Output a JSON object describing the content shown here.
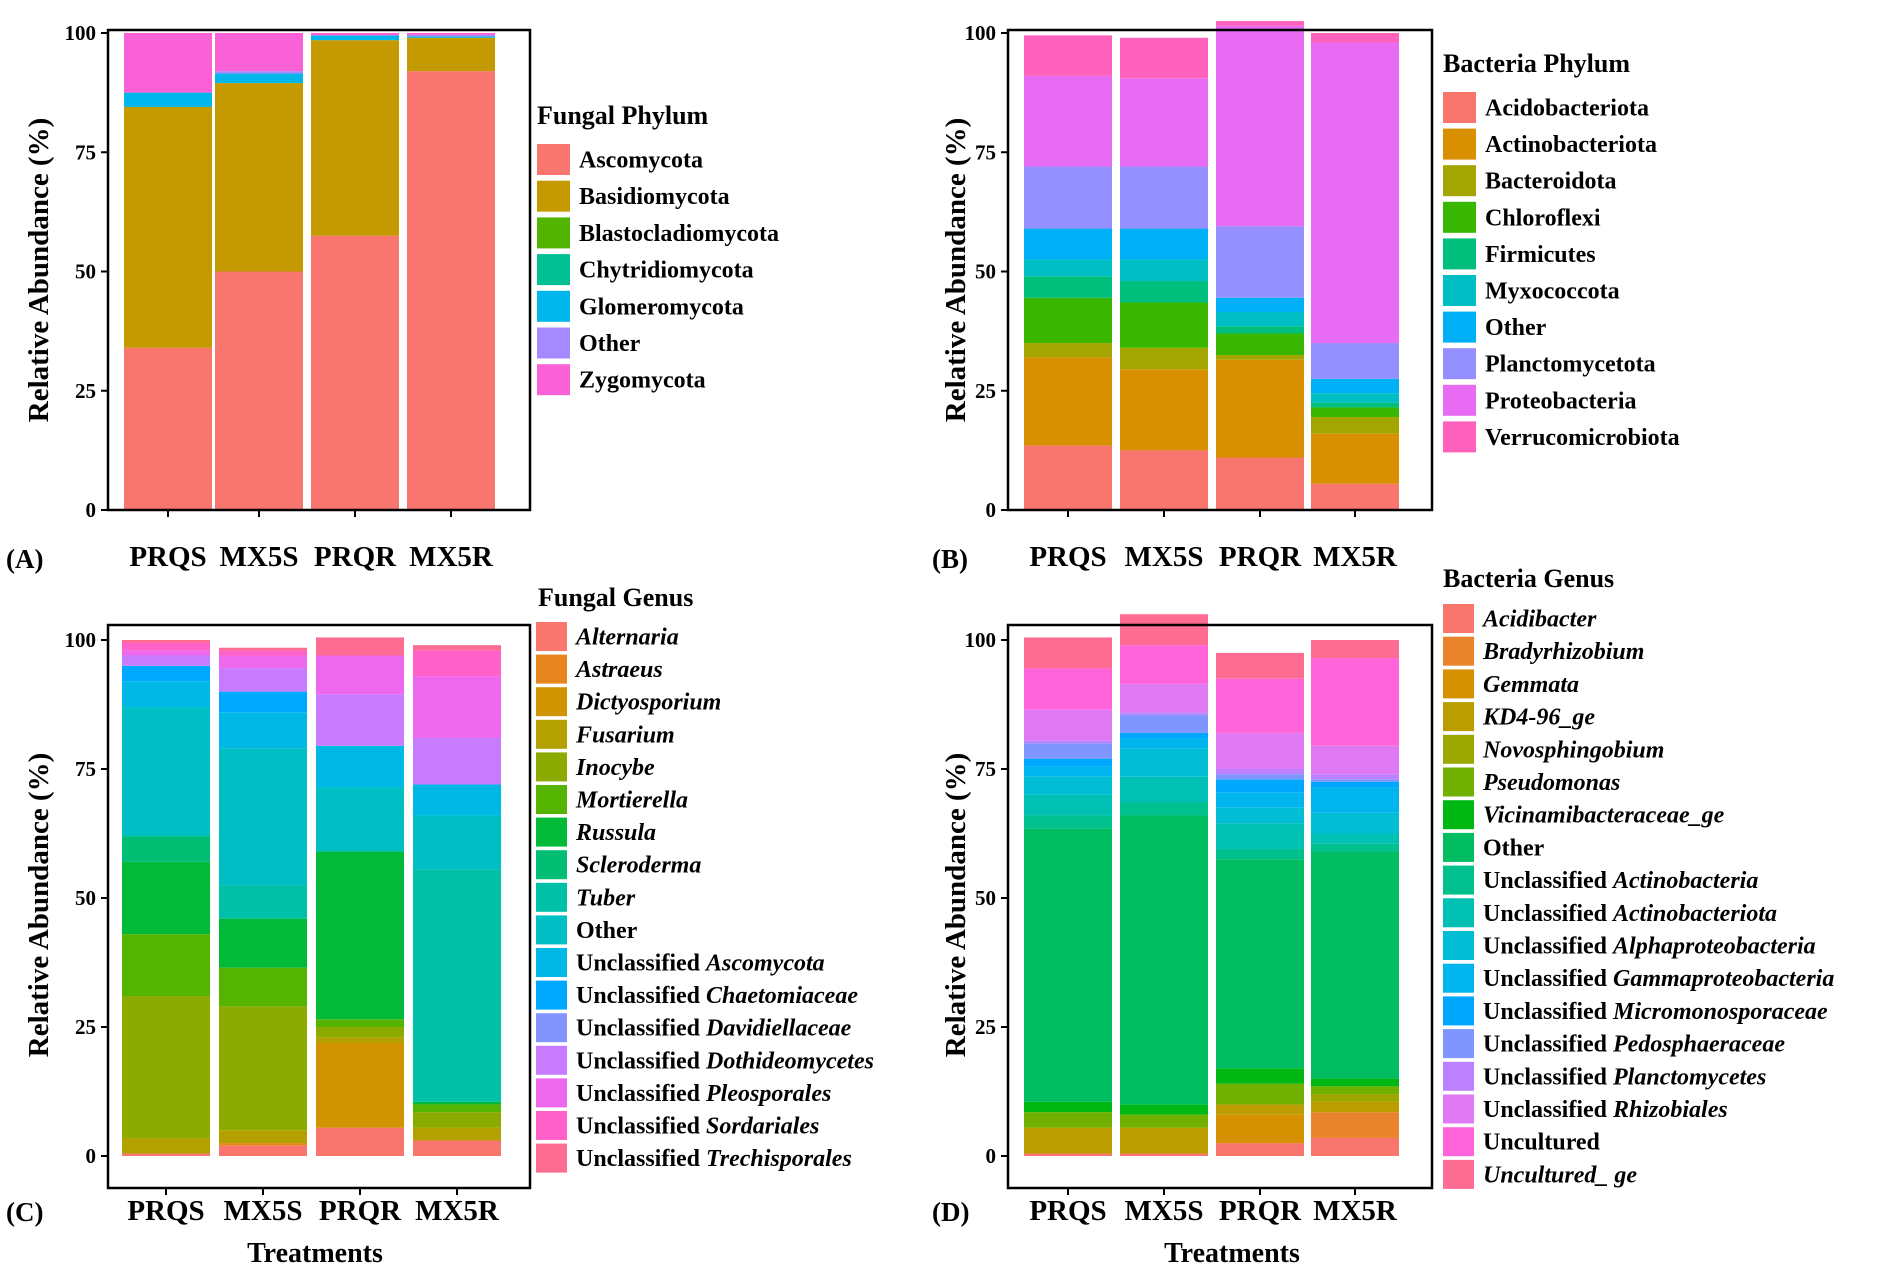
{
  "chart_data": [
    {
      "type": "stacked-bar",
      "panel_tag": "(A)",
      "ylabel": "Relative Abundance (%)",
      "xlabel": "",
      "ylim": [
        0,
        100
      ],
      "yticks": [
        "0",
        "25",
        "50",
        "75",
        "100"
      ],
      "categories": [
        "PRQS",
        "MX5S",
        "PRQR",
        "MX5R"
      ],
      "legend_title": "Fungal Phylum",
      "series": [
        {
          "name": "Ascomycota",
          "color": "#F8766D",
          "values": [
            34,
            50,
            57.5,
            92
          ]
        },
        {
          "name": "Basidiomycota",
          "color": "#C49A00",
          "values": [
            50.5,
            39.5,
            41,
            7
          ]
        },
        {
          "name": "Blastocladiomycota",
          "color": "#53B400",
          "values": [
            0,
            0,
            0,
            0
          ]
        },
        {
          "name": "Chytridiomycota",
          "color": "#00C094",
          "values": [
            0,
            0,
            0,
            0
          ]
        },
        {
          "name": "Glomeromycota",
          "color": "#00B6EB",
          "values": [
            3,
            2,
            1,
            0.3
          ]
        },
        {
          "name": "Other",
          "color": "#A58AFF",
          "values": [
            0,
            0.5,
            0,
            0.3
          ]
        },
        {
          "name": "Zygomycota",
          "color": "#FB61D7",
          "values": [
            12.5,
            8,
            0.5,
            0.4
          ]
        }
      ]
    },
    {
      "type": "stacked-bar",
      "panel_tag": "(B)",
      "ylabel": "Relative Abundance (%)",
      "xlabel": "",
      "ylim": [
        0,
        100
      ],
      "yticks": [
        "0",
        "25",
        "50",
        "75",
        "100"
      ],
      "categories": [
        "PRQS",
        "MX5S",
        "PRQR",
        "MX5R"
      ],
      "legend_title": "Bacteria Phylum",
      "series": [
        {
          "name": "Acidobacteriota",
          "color": "#F8766D",
          "values": [
            13.5,
            12.5,
            11,
            5.5
          ]
        },
        {
          "name": "Actinobacteriota",
          "color": "#D89000",
          "values": [
            18.5,
            17,
            20.5,
            10.5
          ]
        },
        {
          "name": "Bacteroidota",
          "color": "#A3A500",
          "values": [
            3,
            4.5,
            1,
            3.5
          ]
        },
        {
          "name": "Chloroflexi",
          "color": "#39B600",
          "values": [
            9.5,
            9.5,
            4.5,
            2
          ]
        },
        {
          "name": "Firmicutes",
          "color": "#00BF7D",
          "values": [
            4.5,
            4.5,
            1.5,
            1
          ]
        },
        {
          "name": "Myxococcota",
          "color": "#00BFC4",
          "values": [
            3.5,
            4.5,
            3,
            2
          ]
        },
        {
          "name": "Other",
          "color": "#00B0F6",
          "values": [
            6.5,
            6.5,
            3,
            3
          ]
        },
        {
          "name": "Planctomycetota",
          "color": "#9590FF",
          "values": [
            13,
            13,
            15,
            7.5
          ]
        },
        {
          "name": "Proteobacteria",
          "color": "#E76BF3",
          "values": [
            19,
            18.5,
            42,
            63
          ]
        },
        {
          "name": "Verrucomicrobiota",
          "color": "#FF62BC",
          "values": [
            8.5,
            8.5,
            1,
            2
          ]
        }
      ]
    },
    {
      "type": "stacked-bar",
      "panel_tag": "(C)",
      "ylabel": "Relative Abundance (%)",
      "xlabel": "Treatments",
      "ylim": [
        0,
        100
      ],
      "yticks": [
        "0",
        "25",
        "50",
        "75",
        "100"
      ],
      "categories": [
        "PRQS",
        "MX5S",
        "PRQR",
        "MX5R"
      ],
      "legend_title": "Fungal Genus",
      "series": [
        {
          "name": "Alternaria",
          "prefix": "",
          "color": "#F8766D",
          "values": [
            0.5,
            2,
            5.5,
            3
          ]
        },
        {
          "name": "Astraeus",
          "prefix": "",
          "color": "#E7851E",
          "values": [
            0,
            0.5,
            0,
            0
          ]
        },
        {
          "name": "Dictyosporium",
          "prefix": "",
          "color": "#D09400",
          "values": [
            0,
            0,
            16.5,
            0
          ]
        },
        {
          "name": "Fusarium",
          "prefix": "",
          "color": "#B2A100",
          "values": [
            3,
            2.5,
            1,
            2.5
          ]
        },
        {
          "name": "Inocybe",
          "prefix": "",
          "color": "#8BAB00",
          "values": [
            27.5,
            24,
            2,
            3
          ]
        },
        {
          "name": "Mortierella",
          "prefix": "",
          "color": "#55B400",
          "values": [
            12,
            7.5,
            1.5,
            1.5
          ]
        },
        {
          "name": "Russula",
          "prefix": "",
          "color": "#00BA38",
          "values": [
            14,
            9.5,
            32.5,
            0.5
          ]
        },
        {
          "name": "Scleroderma",
          "prefix": "",
          "color": "#00BF74",
          "values": [
            5,
            0,
            0,
            0
          ]
        },
        {
          "name": "Tuber",
          "prefix": "",
          "color": "#00C1A7",
          "values": [
            0,
            6.5,
            0,
            45
          ]
        },
        {
          "name": "Other",
          "prefix": "",
          "color": "#00BFC4",
          "values": [
            25,
            26.5,
            12.5,
            10.5
          ]
        },
        {
          "name": "Ascomycota",
          "prefix": "Unclassified ",
          "color": "#00B8E5",
          "values": [
            5,
            7,
            8,
            6
          ]
        },
        {
          "name": "Chaetomiaceae",
          "prefix": "Unclassified ",
          "color": "#00A9FF",
          "values": [
            3,
            4,
            0,
            0
          ]
        },
        {
          "name": "Davidiellaceae",
          "prefix": "Unclassified ",
          "color": "#8494FF",
          "values": [
            0,
            0,
            0,
            0
          ]
        },
        {
          "name": "Dothideomycetes",
          "prefix": "Unclassified ",
          "color": "#C77CFF",
          "values": [
            2,
            4.5,
            10,
            9
          ]
        },
        {
          "name": "Pleosporales",
          "prefix": "Unclassified ",
          "color": "#ED68ED",
          "values": [
            1,
            2.5,
            7.5,
            12
          ]
        },
        {
          "name": "Sordariales",
          "prefix": "Unclassified ",
          "color": "#FF61C9",
          "values": [
            1.5,
            1,
            0,
            5
          ]
        },
        {
          "name": "Trechisporales",
          "prefix": "Unclassified ",
          "color": "#FF6C91",
          "values": [
            0.5,
            0.5,
            3.5,
            1
          ]
        }
      ]
    },
    {
      "type": "stacked-bar",
      "panel_tag": "(D)",
      "ylabel": "Relative Abundance (%)",
      "xlabel": "Treatments",
      "ylim": [
        0,
        100
      ],
      "yticks": [
        "0",
        "25",
        "50",
        "75",
        "100"
      ],
      "categories": [
        "PRQS",
        "MX5S",
        "PRQR",
        "MX5R"
      ],
      "legend_title": "Bacteria Genus",
      "series": [
        {
          "name": "Acidibacter",
          "prefix": "",
          "color": "#F8766D",
          "values": [
            0.5,
            0.5,
            2.5,
            3.5
          ]
        },
        {
          "name": "Bradyrhizobium",
          "prefix": "",
          "color": "#E9842C",
          "values": [
            0,
            0,
            0,
            5
          ]
        },
        {
          "name": "Gemmata",
          "prefix": "",
          "color": "#D69100",
          "values": [
            0,
            0,
            5.5,
            0
          ]
        },
        {
          "name": "KD4-96_ge",
          "prefix": "",
          "color": "#BC9D00",
          "values": [
            5,
            5,
            2,
            2
          ]
        },
        {
          "name": "Novosphingobium",
          "prefix": "",
          "color": "#9CA700",
          "values": [
            0,
            0,
            0,
            1.5
          ]
        },
        {
          "name": "Pseudomonas",
          "prefix": "",
          "color": "#6FB000",
          "values": [
            3,
            2.5,
            4,
            1.5
          ]
        },
        {
          "name": "Vicinamibacteraceae_ge",
          "prefix": "",
          "color": "#00B813",
          "values": [
            2,
            2,
            3,
            1.5
          ]
        },
        {
          "name": "Other",
          "prefix": "",
          "color": "#00BD61",
          "values": [
            53,
            56,
            40.5,
            44
          ]
        },
        {
          "name": "Actinobacteria",
          "prefix": "Unclassified ",
          "color": "#00C08E",
          "values": [
            2.5,
            2.5,
            2,
            1.5
          ]
        },
        {
          "name": "Actinobacteriota",
          "prefix": "Unclassified ",
          "color": "#00C0B4",
          "values": [
            4,
            5,
            5,
            2
          ]
        },
        {
          "name": "Alphaproteobacteria",
          "prefix": "Unclassified ",
          "color": "#00BDD4",
          "values": [
            3.5,
            5.5,
            3,
            4
          ]
        },
        {
          "name": "Gammaproteobacteria",
          "prefix": "Unclassified ",
          "color": "#00B5EE",
          "values": [
            2,
            2,
            3,
            5
          ]
        },
        {
          "name": "Micromonosporaceae",
          "prefix": "Unclassified ",
          "color": "#00A7FF",
          "values": [
            1.5,
            1,
            2.5,
            1
          ]
        },
        {
          "name": "Pedosphaeraceae",
          "prefix": "Unclassified ",
          "color": "#7F96FF",
          "values": [
            3,
            3.5,
            1,
            0.5
          ]
        },
        {
          "name": "Planctomycetes",
          "prefix": "Unclassified ",
          "color": "#BC81FF",
          "values": [
            0.5,
            0.5,
            1,
            1
          ]
        },
        {
          "name": "Rhizobiales",
          "prefix": "Unclassified ",
          "color": "#E07AF4",
          "values": [
            6,
            5.5,
            7,
            5.5
          ]
        },
        {
          "name": "Uncultured",
          "prefix": "",
          "color": "#FF64DA",
          "values": [
            8,
            7.5,
            10.5,
            17
          ]
        },
        {
          "name": "Uncultured_ ge",
          "prefix": "",
          "color": "#FF6C92",
          "values": [
            6,
            6,
            5,
            3.5
          ]
        }
      ]
    }
  ]
}
